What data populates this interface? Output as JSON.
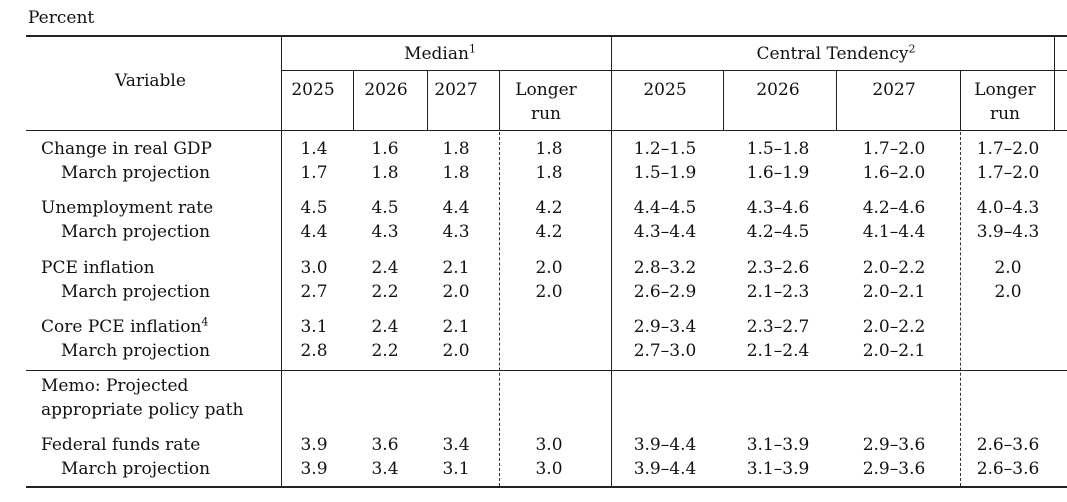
{
  "caption": "Percent",
  "header": {
    "variable": "Variable",
    "median": "Median",
    "median_note": "1",
    "central": "Central Tendency",
    "central_note": "2",
    "years": [
      "2025",
      "2026",
      "2027"
    ],
    "longer_line1": "Longer",
    "longer_line2": "run"
  },
  "groups": [
    {
      "rows": [
        {
          "label": "Change in real GDP",
          "indent": false,
          "median": [
            "1.4",
            "1.6",
            "1.8",
            "1.8"
          ],
          "central": [
            "1.2–1.5",
            "1.5–1.8",
            "1.7–2.0",
            "1.7–2.0"
          ]
        },
        {
          "label": "March projection",
          "indent": true,
          "median": [
            "1.7",
            "1.8",
            "1.8",
            "1.8"
          ],
          "central": [
            "1.5–1.9",
            "1.6–1.9",
            "1.6–2.0",
            "1.7–2.0"
          ]
        }
      ]
    },
    {
      "rows": [
        {
          "label": "Unemployment rate",
          "indent": false,
          "median": [
            "4.5",
            "4.5",
            "4.4",
            "4.2"
          ],
          "central": [
            "4.4–4.5",
            "4.3–4.6",
            "4.2–4.6",
            "4.0–4.3"
          ]
        },
        {
          "label": "March projection",
          "indent": true,
          "median": [
            "4.4",
            "4.3",
            "4.3",
            "4.2"
          ],
          "central": [
            "4.3–4.4",
            "4.2–4.5",
            "4.1–4.4",
            "3.9–4.3"
          ]
        }
      ]
    },
    {
      "rows": [
        {
          "label": "PCE inflation",
          "indent": false,
          "median": [
            "3.0",
            "2.4",
            "2.1",
            "2.0"
          ],
          "central": [
            "2.8–3.2",
            "2.3–2.6",
            "2.0–2.2",
            "2.0"
          ]
        },
        {
          "label": "March projection",
          "indent": true,
          "median": [
            "2.7",
            "2.2",
            "2.0",
            "2.0"
          ],
          "central": [
            "2.6–2.9",
            "2.1–2.3",
            "2.0–2.1",
            "2.0"
          ]
        }
      ]
    },
    {
      "rows": [
        {
          "label": "Core PCE inflation",
          "note": "4",
          "indent": false,
          "median": [
            "3.1",
            "2.4",
            "2.1",
            ""
          ],
          "central": [
            "2.9–3.4",
            "2.3–2.7",
            "2.0–2.2",
            ""
          ]
        },
        {
          "label": "March projection",
          "indent": true,
          "median": [
            "2.8",
            "2.2",
            "2.0",
            ""
          ],
          "central": [
            "2.7–3.0",
            "2.1–2.4",
            "2.0–2.1",
            ""
          ]
        }
      ]
    }
  ],
  "memo": {
    "line1": "Memo: Projected",
    "line2": "appropriate policy path"
  },
  "funds": [
    {
      "label": "Federal funds rate",
      "indent": false,
      "median": [
        "3.9",
        "3.6",
        "3.4",
        "3.0"
      ],
      "central": [
        "3.9–4.4",
        "3.1–3.9",
        "2.9–3.6",
        "2.6–3.6"
      ]
    },
    {
      "label": "March projection",
      "indent": true,
      "median": [
        "3.9",
        "3.4",
        "3.1",
        "3.0"
      ],
      "central": [
        "3.9–4.4",
        "3.1–3.9",
        "2.9–3.6",
        "2.6–3.6"
      ]
    }
  ]
}
